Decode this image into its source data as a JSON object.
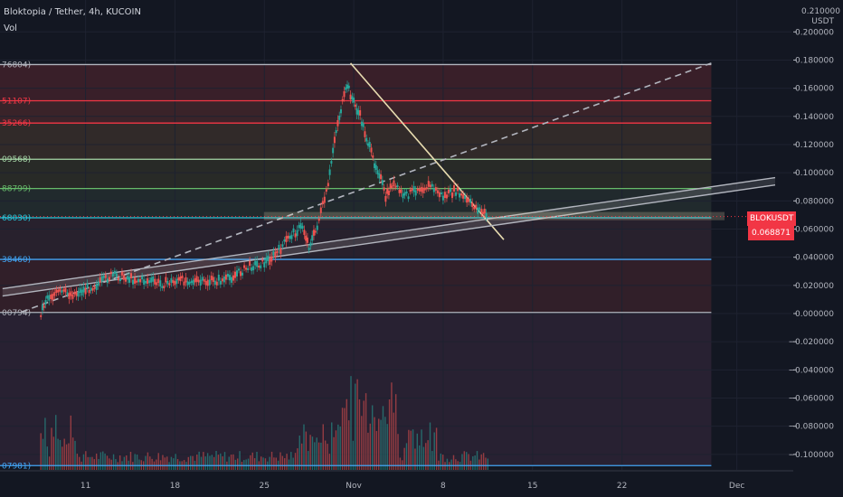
{
  "header": {
    "title": "Bloktopia / Tether, 4h, KUCOIN",
    "volume_label": "Vol"
  },
  "axis_unit": "USDT",
  "price_badge": {
    "symbol": "BLOKUSDT",
    "value": "0.068871",
    "color": "#f23645"
  },
  "colors": {
    "background": "#131722",
    "up": "#26a69a",
    "down": "#ef5350",
    "trendline": "#e8dcb0",
    "channel": "#b2b5be"
  },
  "chart_data": {
    "type": "candlestick",
    "instrument": "BLOKUSDT",
    "exchange": "KUCOIN",
    "timeframe": "4h",
    "ylim": [
      -0.11,
      0.21
    ],
    "yticks": [
      0.2,
      0.18,
      0.16,
      0.14,
      0.12,
      0.1,
      0.08,
      0.06,
      0.04,
      0.02,
      0.0,
      -0.02,
      -0.04,
      -0.06,
      -0.08,
      -0.1
    ],
    "ytick_labels": [
      "0.200000",
      "0.180000",
      "0.160000",
      "0.140000",
      "0.120000",
      "0.100000",
      "0.080000",
      "0.060000",
      "0.040000",
      "0.020000",
      "0.000000",
      "−0.020000",
      "−0.040000",
      "−0.060000",
      "−0.080000",
      "−0.100000"
    ],
    "top_partial_label": "0.210000",
    "xdomain": [
      "2021-10-06",
      "2021-12-04"
    ],
    "xticks": [
      {
        "date": "2021-10-11",
        "label": "11"
      },
      {
        "date": "2021-10-18",
        "label": "18"
      },
      {
        "date": "2021-10-25",
        "label": "25"
      },
      {
        "date": "2021-11-01",
        "label": "Nov"
      },
      {
        "date": "2021-11-08",
        "label": "8"
      },
      {
        "date": "2021-11-15",
        "label": "15"
      },
      {
        "date": "2021-11-22",
        "label": "22"
      },
      {
        "date": "2021-12-01",
        "label": "Dec"
      }
    ],
    "fib_levels": [
      {
        "price": 0.1768,
        "label": "76804)",
        "color": "#b2b5be"
      },
      {
        "price": 0.15111,
        "label": "51107)",
        "color": "#f23645"
      },
      {
        "price": 0.13527,
        "label": "35266)",
        "color": "#f23645"
      },
      {
        "price": 0.10957,
        "label": "09568)",
        "color": "#a5d6a7"
      },
      {
        "price": 0.0888,
        "label": "88799)",
        "color": "#66bb6a"
      },
      {
        "price": 0.06803,
        "label": "68030)",
        "color": "#26c6da"
      },
      {
        "price": 0.03846,
        "label": "38460)",
        "color": "#42a5f5"
      },
      {
        "price": 0.00079,
        "label": "00794)",
        "color": "#b2b5be"
      },
      {
        "price": -0.10798,
        "label": "07981)",
        "color": "#42a5f5"
      }
    ],
    "price_path": [
      [
        "2021-10-07 12:00",
        0.0005
      ],
      [
        "2021-10-08 00:00",
        0.012
      ],
      [
        "2021-10-09 00:00",
        0.015
      ],
      [
        "2021-10-10 00:00",
        0.014
      ],
      [
        "2021-10-11 00:00",
        0.017
      ],
      [
        "2021-10-12 00:00",
        0.021
      ],
      [
        "2021-10-13 00:00",
        0.027
      ],
      [
        "2021-10-14 00:00",
        0.026
      ],
      [
        "2021-10-15 00:00",
        0.024
      ],
      [
        "2021-10-16 00:00",
        0.023
      ],
      [
        "2021-10-17 00:00",
        0.021
      ],
      [
        "2021-10-18 00:00",
        0.023
      ],
      [
        "2021-10-19 00:00",
        0.024
      ],
      [
        "2021-10-20 00:00",
        0.022
      ],
      [
        "2021-10-21 00:00",
        0.023
      ],
      [
        "2021-10-22 00:00",
        0.024
      ],
      [
        "2021-10-23 00:00",
        0.029
      ],
      [
        "2021-10-24 00:00",
        0.034
      ],
      [
        "2021-10-25 00:00",
        0.036
      ],
      [
        "2021-10-26 00:00",
        0.043
      ],
      [
        "2021-10-27 00:00",
        0.055
      ],
      [
        "2021-10-28 00:00",
        0.062
      ],
      [
        "2021-10-28 12:00",
        0.048
      ],
      [
        "2021-10-29 00:00",
        0.058
      ],
      [
        "2021-10-30 00:00",
        0.09
      ],
      [
        "2021-10-30 12:00",
        0.125
      ],
      [
        "2021-10-31 00:00",
        0.145
      ],
      [
        "2021-10-31 12:00",
        0.162
      ],
      [
        "2021-11-01 00:00",
        0.15
      ],
      [
        "2021-11-01 12:00",
        0.14
      ],
      [
        "2021-11-02 00:00",
        0.125
      ],
      [
        "2021-11-02 12:00",
        0.11
      ],
      [
        "2021-11-03 00:00",
        0.1
      ],
      [
        "2021-11-03 12:00",
        0.082
      ],
      [
        "2021-11-04 00:00",
        0.092
      ],
      [
        "2021-11-05 00:00",
        0.083
      ],
      [
        "2021-11-06 00:00",
        0.089
      ],
      [
        "2021-11-07 00:00",
        0.091
      ],
      [
        "2021-11-08 00:00",
        0.083
      ],
      [
        "2021-11-09 00:00",
        0.087
      ],
      [
        "2021-11-10 00:00",
        0.079
      ],
      [
        "2021-11-11 00:00",
        0.073
      ],
      [
        "2021-11-11 12:00",
        0.0689
      ]
    ],
    "drawings": [
      {
        "type": "fib-retracement",
        "from_date": "2021-10-07 12:00",
        "to_date": "2021-11-29",
        "low": 0.00079,
        "high": 0.1768
      },
      {
        "type": "trendline",
        "name": "falling-resistance",
        "from": [
          "2021-10-31 18:00",
          0.1778
        ],
        "to": [
          "2021-11-12 18:00",
          0.0525
        ],
        "color": "#e8dcb0"
      },
      {
        "type": "dashed-line",
        "name": "diagonal-guide",
        "from": [
          "2021-10-06 00:00",
          0.0012
        ],
        "to": [
          "2021-11-29 00:00",
          0.1778
        ],
        "color": "#b2b5be"
      },
      {
        "type": "channel",
        "name": "rising-support",
        "from": [
          "2021-10-04 12:00",
          0.0151
        ],
        "to": [
          "2021-12-04 00:00",
          0.0939
        ],
        "width": 0.0026,
        "color": "#b2b5be"
      },
      {
        "type": "rectangle",
        "name": "support-zone",
        "from": [
          "2021-10-25 00:00",
          0.0718
        ],
        "to": [
          "2021-11-30 00:00",
          0.0666
        ],
        "color": "#e8dcb0"
      }
    ],
    "volume": {
      "start": "2021-10-07 12:00",
      "end": "2021-11-11 12:00",
      "max_bar_price_equiv": -0.0425
    }
  }
}
